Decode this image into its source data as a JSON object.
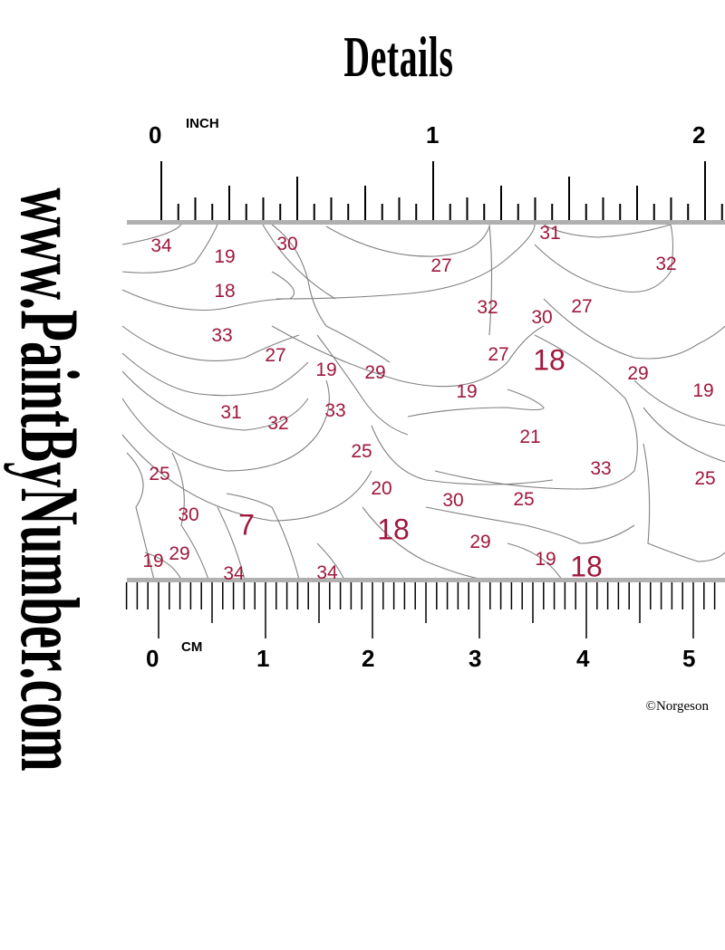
{
  "title": "Details",
  "watermark_side": "www.PaintByNumber.com",
  "copyright": "©Norgeson",
  "inch_ruler": {
    "unit": "INCH",
    "labels": [
      "0",
      "1",
      "2"
    ]
  },
  "cm_ruler": {
    "unit": "CM",
    "labels": [
      "0",
      "1",
      "2",
      "3",
      "4",
      "5"
    ]
  },
  "region_numbers": [
    "34",
    "19",
    "30",
    "27",
    "31",
    "32",
    "18",
    "32",
    "30",
    "27",
    "33",
    "27",
    "19",
    "29",
    "27",
    "18",
    "29",
    "19",
    "31",
    "32",
    "33",
    "19",
    "21",
    "25",
    "33",
    "25",
    "25",
    "20",
    "30",
    "25",
    "30",
    "7",
    "18",
    "29",
    "19",
    "18",
    "19",
    "29",
    "34",
    "34"
  ],
  "colors": {
    "number_text": "#a0183c",
    "outline": "#808080",
    "ruler_bar": "#b0b0b0"
  }
}
